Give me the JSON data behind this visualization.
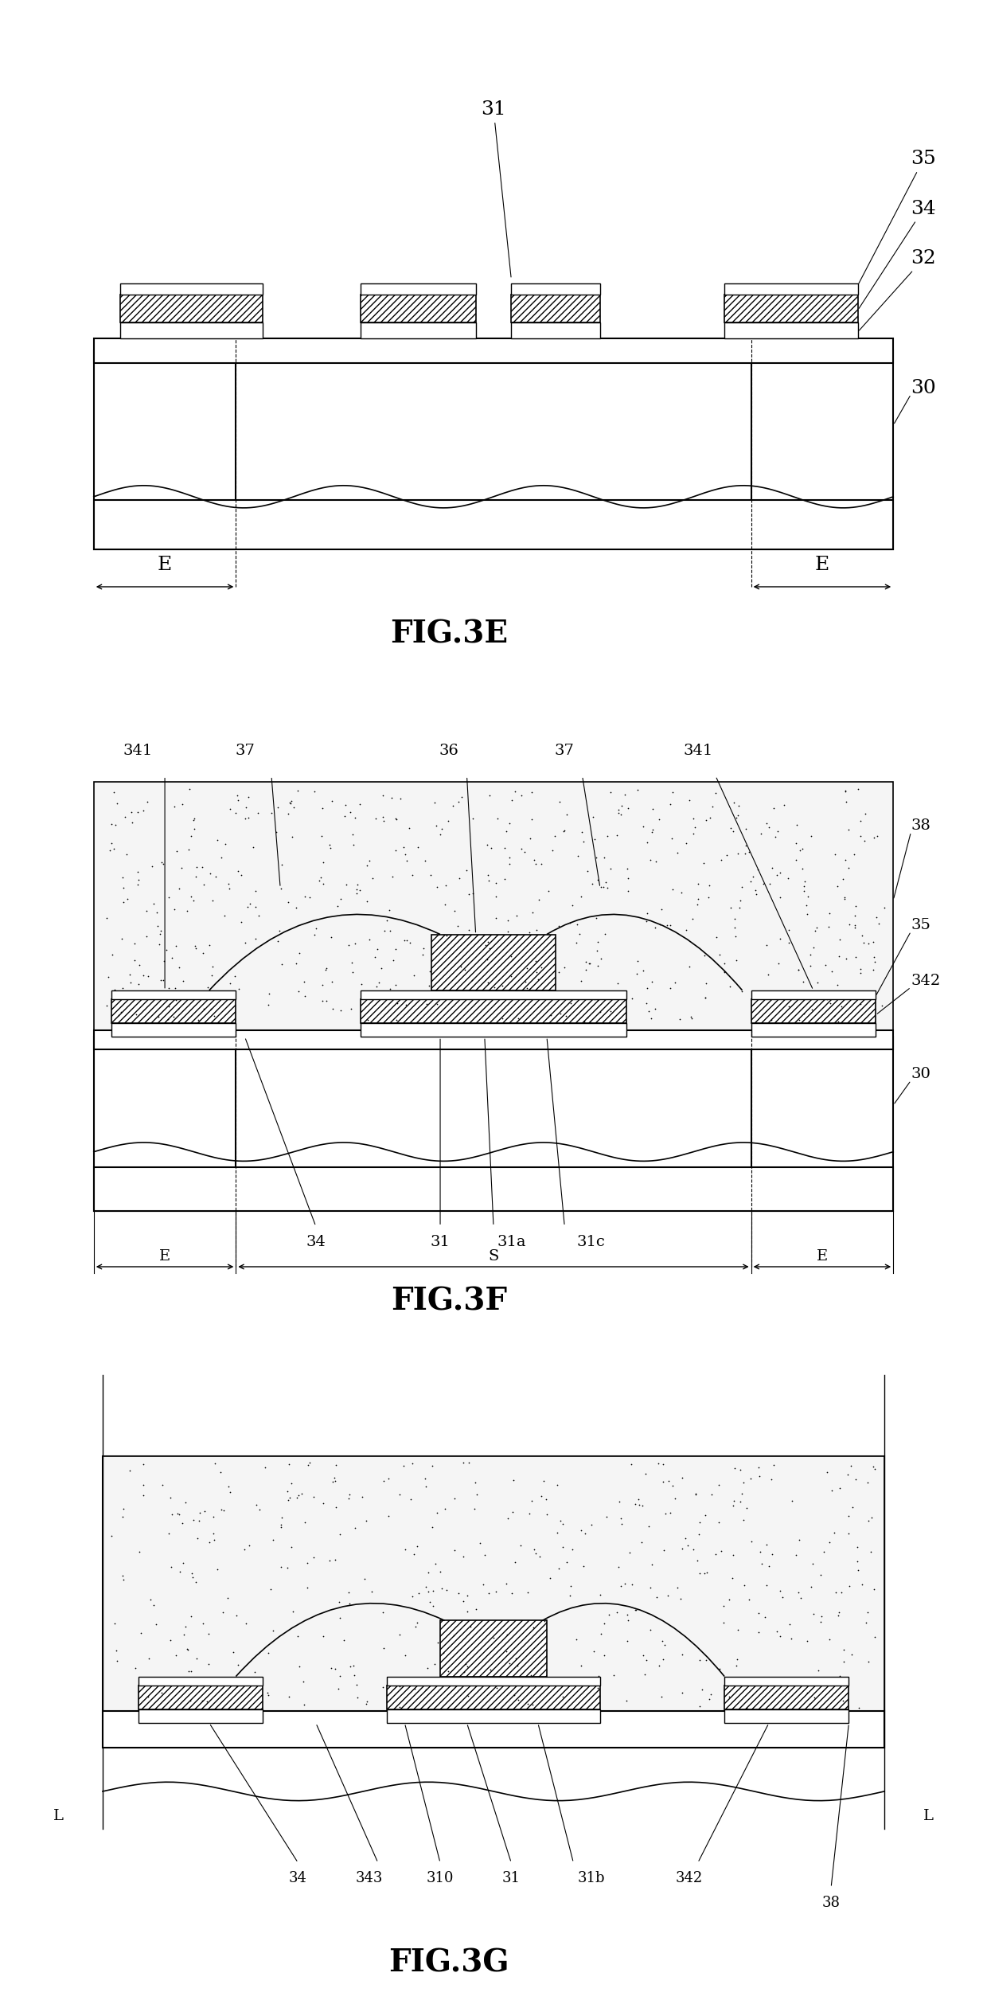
{
  "fig_width": 12.4,
  "fig_height": 25.17,
  "bg_color": "#ffffff",
  "line_color": "#000000",
  "hatch_color": "#000000",
  "speckle_color": "#555555",
  "fig3e": {
    "title": "FIG.3E",
    "title_fontsize": 28,
    "label_fontsize": 18
  },
  "fig3f": {
    "title": "FIG.3F",
    "title_fontsize": 28,
    "label_fontsize": 18
  },
  "fig3g": {
    "title": "FIG.3G",
    "title_fontsize": 28,
    "label_fontsize": 18
  }
}
